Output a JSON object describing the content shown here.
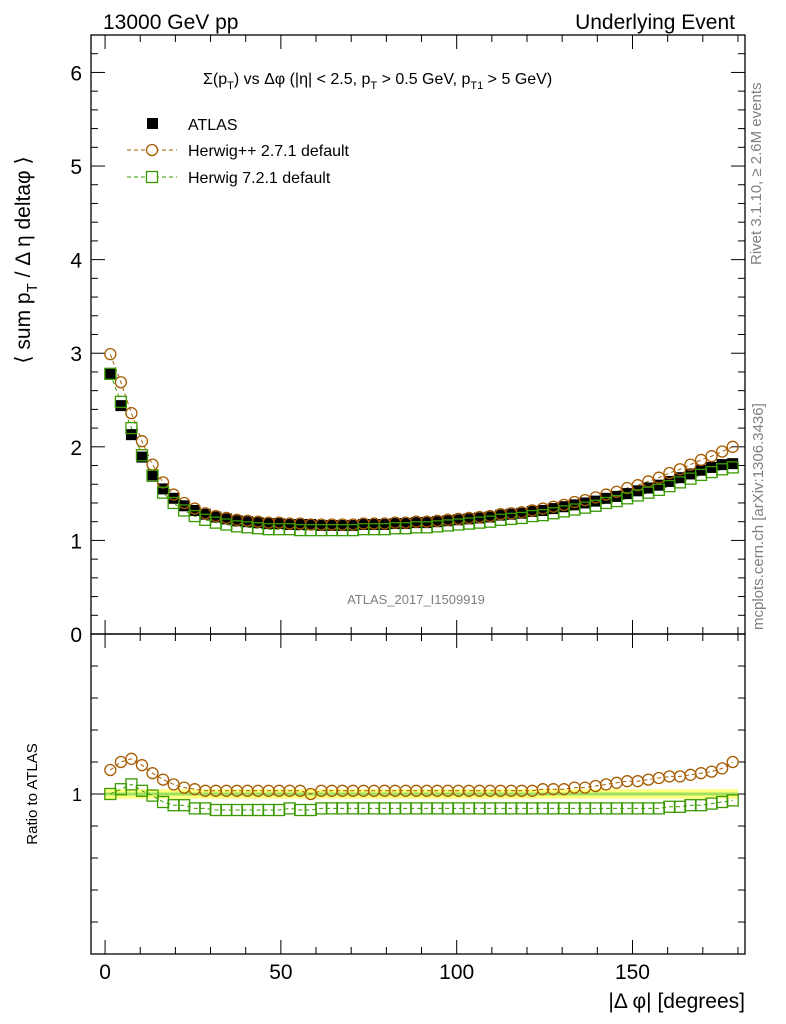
{
  "header": {
    "left": "13000 GeV pp",
    "right": "Underlying Event"
  },
  "side": {
    "rivet": "Rivet 3.1.10, ≥ 2.6M events",
    "mcplots": "mcplots.cern.ch [arXiv:1306.3436]"
  },
  "colors": {
    "atlas": "#000000",
    "herwigpp": "#a65b00",
    "herwig7": "#3a9a00",
    "band": "#ffff80",
    "band_edge": "#a0e060"
  },
  "chart_data": {
    "type": "scatter",
    "title": "Σ(p_T) vs Δφ (|η| < 2.5, p_T > 0.5 GeV, p_T1 > 5 GeV)",
    "analysis_label": "ATLAS_2017_I1509919",
    "xlabel": "|Δ φ| [degrees]",
    "ylabel": "⟨ sum p_T / Δ η deltaφ ⟩",
    "ratio_ylabel": "Ratio to ATLAS",
    "xlim": [
      -4,
      182
    ],
    "ylim": [
      0,
      6.4
    ],
    "ratio_ylim": [
      0.5,
      1.5
    ],
    "xticks": [
      0,
      50,
      100,
      150
    ],
    "yticks": [
      1,
      2,
      3,
      4,
      5,
      6
    ],
    "ratio_yticks": [
      1
    ],
    "grid": false,
    "legend_position": "top-left",
    "x": [
      1.5,
      4.5,
      7.5,
      10.5,
      13.5,
      16.5,
      19.5,
      22.5,
      25.5,
      28.5,
      31.5,
      34.5,
      37.5,
      40.5,
      43.5,
      46.5,
      49.5,
      52.5,
      55.5,
      58.5,
      61.5,
      64.5,
      67.5,
      70.5,
      73.5,
      76.5,
      79.5,
      82.5,
      85.5,
      88.5,
      91.5,
      94.5,
      97.5,
      100.5,
      103.5,
      106.5,
      109.5,
      112.5,
      115.5,
      118.5,
      121.5,
      124.5,
      127.5,
      130.5,
      133.5,
      136.5,
      139.5,
      142.5,
      145.5,
      148.5,
      151.5,
      154.5,
      157.5,
      160.5,
      163.5,
      166.5,
      169.5,
      172.5,
      175.5,
      178.5
    ],
    "series": [
      {
        "name": "ATLAS",
        "marker": "filled-square",
        "color": "#000000",
        "values": [
          2.78,
          2.44,
          2.13,
          1.89,
          1.7,
          1.55,
          1.45,
          1.37,
          1.32,
          1.28,
          1.25,
          1.23,
          1.21,
          1.2,
          1.19,
          1.18,
          1.18,
          1.17,
          1.17,
          1.17,
          1.16,
          1.16,
          1.16,
          1.16,
          1.17,
          1.17,
          1.17,
          1.18,
          1.18,
          1.19,
          1.19,
          1.2,
          1.21,
          1.22,
          1.23,
          1.24,
          1.25,
          1.27,
          1.28,
          1.29,
          1.31,
          1.32,
          1.34,
          1.36,
          1.38,
          1.4,
          1.42,
          1.45,
          1.47,
          1.5,
          1.53,
          1.56,
          1.59,
          1.63,
          1.67,
          1.71,
          1.75,
          1.78,
          1.81,
          1.82
        ]
      },
      {
        "name": "Herwig++ 2.7.1 default",
        "marker": "open-circle",
        "color": "#a65b00",
        "values": [
          2.99,
          2.69,
          2.36,
          2.06,
          1.81,
          1.62,
          1.49,
          1.4,
          1.34,
          1.29,
          1.26,
          1.24,
          1.22,
          1.21,
          1.2,
          1.19,
          1.19,
          1.18,
          1.18,
          1.17,
          1.17,
          1.17,
          1.17,
          1.17,
          1.18,
          1.18,
          1.18,
          1.19,
          1.19,
          1.2,
          1.2,
          1.21,
          1.22,
          1.23,
          1.24,
          1.25,
          1.26,
          1.28,
          1.29,
          1.3,
          1.32,
          1.34,
          1.36,
          1.38,
          1.41,
          1.43,
          1.46,
          1.49,
          1.52,
          1.56,
          1.59,
          1.63,
          1.67,
          1.72,
          1.76,
          1.81,
          1.86,
          1.9,
          1.95,
          2.0
        ]
      },
      {
        "name": "Herwig 7.2.1 default",
        "marker": "open-square",
        "color": "#3a9a00",
        "values": [
          2.78,
          2.48,
          2.2,
          1.91,
          1.69,
          1.51,
          1.4,
          1.32,
          1.26,
          1.22,
          1.19,
          1.17,
          1.15,
          1.14,
          1.13,
          1.12,
          1.12,
          1.12,
          1.11,
          1.11,
          1.11,
          1.11,
          1.11,
          1.11,
          1.12,
          1.12,
          1.12,
          1.13,
          1.13,
          1.14,
          1.14,
          1.15,
          1.16,
          1.17,
          1.18,
          1.19,
          1.2,
          1.22,
          1.23,
          1.24,
          1.26,
          1.27,
          1.29,
          1.31,
          1.33,
          1.35,
          1.37,
          1.4,
          1.42,
          1.45,
          1.48,
          1.51,
          1.54,
          1.58,
          1.62,
          1.66,
          1.7,
          1.73,
          1.76,
          1.78
        ]
      }
    ],
    "ratio_series": [
      {
        "name": "Herwig++ 2.7.1 default",
        "values": [
          1.075,
          1.1,
          1.11,
          1.09,
          1.065,
          1.045,
          1.03,
          1.02,
          1.015,
          1.01,
          1.01,
          1.01,
          1.01,
          1.01,
          1.01,
          1.01,
          1.01,
          1.01,
          1.01,
          1.0,
          1.01,
          1.01,
          1.01,
          1.01,
          1.01,
          1.01,
          1.01,
          1.01,
          1.01,
          1.01,
          1.01,
          1.01,
          1.01,
          1.01,
          1.01,
          1.01,
          1.01,
          1.01,
          1.01,
          1.01,
          1.01,
          1.015,
          1.015,
          1.015,
          1.02,
          1.02,
          1.025,
          1.03,
          1.035,
          1.04,
          1.04,
          1.045,
          1.05,
          1.055,
          1.055,
          1.06,
          1.065,
          1.07,
          1.08,
          1.1
        ]
      },
      {
        "name": "Herwig 7.2.1 default",
        "values": [
          1.0,
          1.015,
          1.03,
          1.01,
          0.995,
          0.975,
          0.965,
          0.965,
          0.955,
          0.955,
          0.95,
          0.95,
          0.95,
          0.95,
          0.95,
          0.95,
          0.95,
          0.955,
          0.95,
          0.95,
          0.955,
          0.955,
          0.955,
          0.955,
          0.955,
          0.955,
          0.955,
          0.955,
          0.955,
          0.955,
          0.955,
          0.955,
          0.955,
          0.955,
          0.955,
          0.955,
          0.955,
          0.955,
          0.955,
          0.955,
          0.955,
          0.955,
          0.955,
          0.955,
          0.955,
          0.955,
          0.955,
          0.955,
          0.955,
          0.955,
          0.955,
          0.955,
          0.955,
          0.96,
          0.96,
          0.965,
          0.965,
          0.97,
          0.975,
          0.98
        ]
      }
    ],
    "ratio_band": [
      0.985,
      1.015
    ]
  }
}
